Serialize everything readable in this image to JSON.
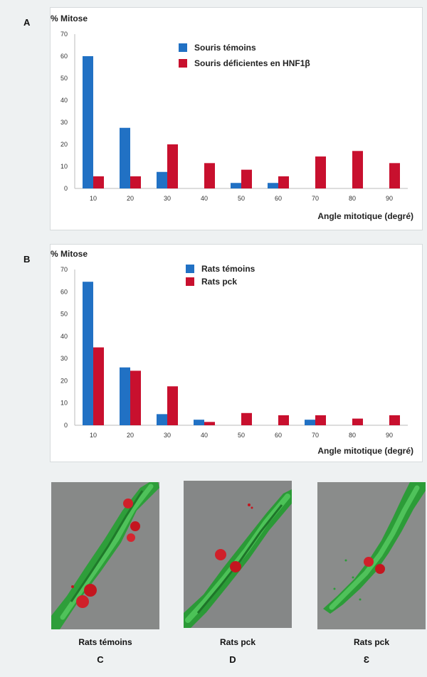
{
  "panels": {
    "a_letter": "A",
    "b_letter": "B",
    "c_letter": "C",
    "d_letter": "D",
    "e_letter": "Ɛ"
  },
  "colors": {
    "control": "#2171c4",
    "mutant": "#c8102e"
  },
  "images": {
    "c_caption": "Rats témoins",
    "d_caption": "Rats pck",
    "e_caption": "Rats pck"
  },
  "chart_data": [
    {
      "type": "bar",
      "ylabel": "% Mitose",
      "xlabel": "Angle mitotique (degré)",
      "ylim": [
        0,
        70
      ],
      "yticks": [
        "0",
        "10",
        "20",
        "30",
        "40",
        "50",
        "60",
        "70"
      ],
      "categories": [
        "10",
        "20",
        "30",
        "40",
        "50",
        "60",
        "70",
        "80",
        "90"
      ],
      "legend_position": "top-center",
      "series": [
        {
          "name": "Souris témoins",
          "color": "#2171c4",
          "values": [
            60,
            27.5,
            7.5,
            0,
            2.5,
            2.5,
            0,
            0,
            0
          ]
        },
        {
          "name": "Souris déficientes en HNF1β",
          "color": "#c8102e",
          "values": [
            5.5,
            5.5,
            20,
            11.5,
            8.5,
            5.5,
            14.5,
            17,
            11.5
          ]
        }
      ]
    },
    {
      "type": "bar",
      "ylabel": "% Mitose",
      "xlabel": "Angle mitotique (degré)",
      "ylim": [
        0,
        70
      ],
      "yticks": [
        "0",
        "10",
        "20",
        "30",
        "40",
        "50",
        "60",
        "70"
      ],
      "categories": [
        "10",
        "20",
        "30",
        "40",
        "50",
        "60",
        "70",
        "80",
        "90"
      ],
      "legend_position": "top-center",
      "series": [
        {
          "name": "Rats témoins",
          "color": "#2171c4",
          "values": [
            64.5,
            26,
            5,
            2.5,
            0,
            0,
            2.5,
            0,
            0
          ]
        },
        {
          "name": "Rats pck",
          "color": "#c8102e",
          "values": [
            35,
            24.5,
            17.5,
            1.5,
            5.5,
            4.5,
            4.5,
            3,
            4.5
          ]
        }
      ]
    }
  ]
}
